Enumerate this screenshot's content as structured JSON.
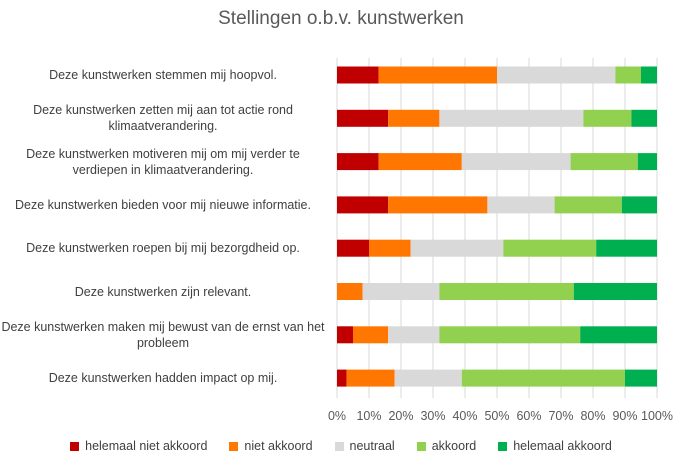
{
  "chart_data": {
    "type": "bar",
    "orientation": "horizontal",
    "stacked": "percent",
    "title": "Stellingen o.b.v. kunstwerken",
    "xlabel": "",
    "ylabel": "",
    "xlim": [
      0,
      100
    ],
    "xticks": [
      "0%",
      "10%",
      "20%",
      "30%",
      "40%",
      "50%",
      "60%",
      "70%",
      "80%",
      "90%",
      "100%"
    ],
    "grid": true,
    "legend_position": "bottom",
    "categories": [
      "Deze kunstwerken stemmen mij hoopvol.",
      "Deze kunstwerken zetten mij aan tot actie rond klimaatverandering.",
      "Deze kunstwerken motiveren mij om mij verder te verdiepen in klimaatverandering.",
      "Deze kunstwerken bieden voor mij nieuwe informatie.",
      "Deze kunstwerken roepen bij mij bezorgdheid op.",
      "Deze kunstwerken zijn relevant.",
      "Deze kunstwerken maken mij bewust van de ernst van het probleem",
      "Deze kunstwerken hadden impact op mij."
    ],
    "series": [
      {
        "name": "helemaal niet akkoord",
        "color": "#C00000",
        "values": [
          13,
          16,
          13,
          16,
          10,
          0,
          5,
          3
        ]
      },
      {
        "name": "niet akkoord",
        "color": "#FF7700",
        "values": [
          37,
          16,
          26,
          31,
          13,
          8,
          11,
          15
        ]
      },
      {
        "name": "neutraal",
        "color": "#D9D9D9",
        "values": [
          37,
          45,
          34,
          21,
          29,
          24,
          16,
          21
        ]
      },
      {
        "name": "akkoord",
        "color": "#92D050",
        "values": [
          8,
          15,
          21,
          21,
          29,
          42,
          44,
          51
        ]
      },
      {
        "name": "helemaal akkoord",
        "color": "#00B050",
        "values": [
          5,
          8,
          6,
          11,
          19,
          26,
          24,
          10
        ]
      }
    ]
  }
}
